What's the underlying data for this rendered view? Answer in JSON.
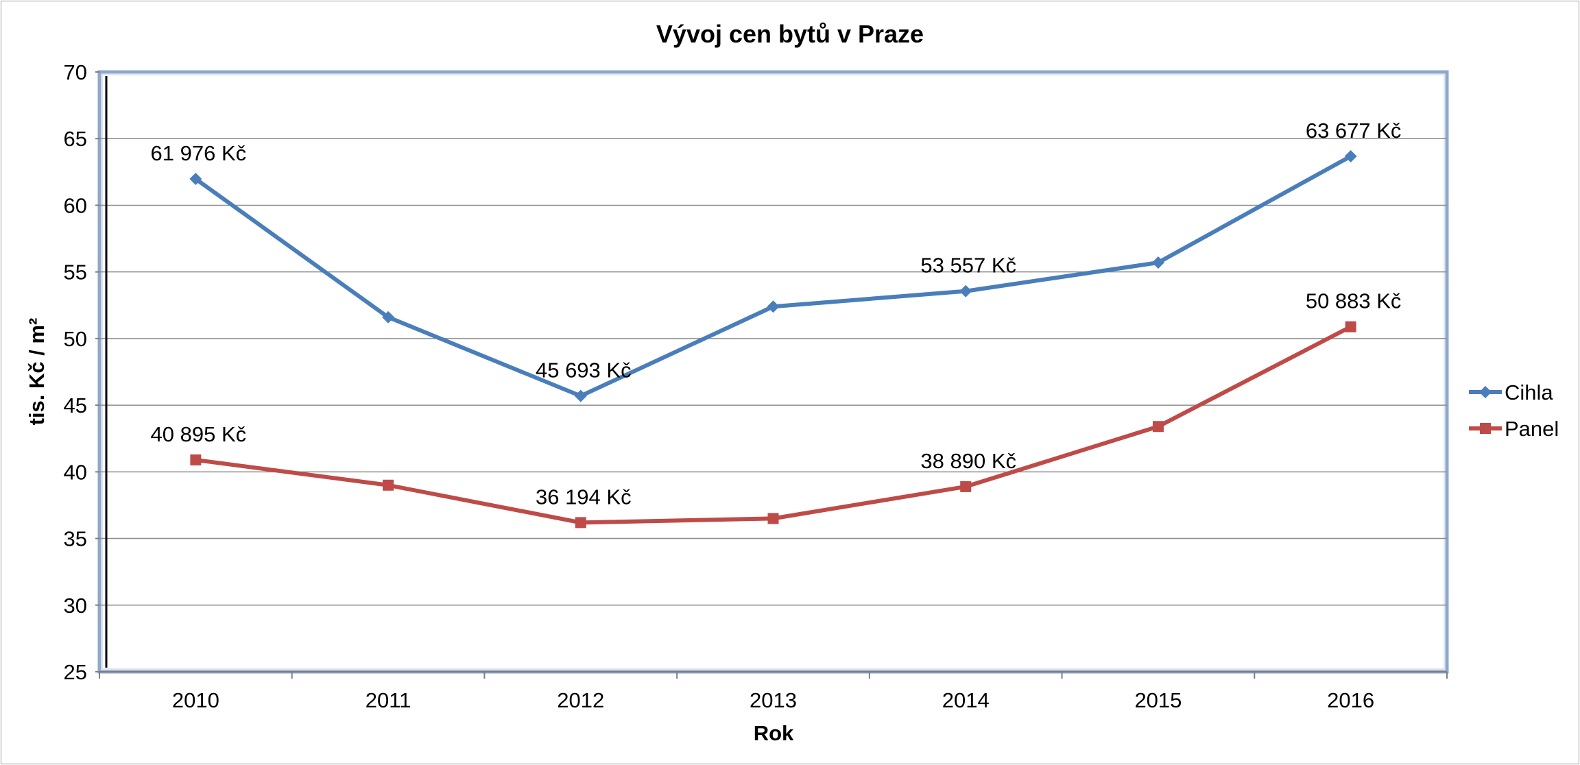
{
  "chart_data": {
    "type": "line",
    "title": "Vývoj cen bytů v Praze",
    "xlabel": "Rok",
    "ylabel": "tis. Kč / m²",
    "categories": [
      "2010",
      "2011",
      "2012",
      "2013",
      "2014",
      "2015",
      "2016"
    ],
    "ylim": [
      25,
      70
    ],
    "yticks": [
      25,
      30,
      35,
      40,
      45,
      50,
      55,
      60,
      65,
      70
    ],
    "grid": true,
    "legend_position": "right",
    "series": [
      {
        "name": "Cihla",
        "color": "#4a7ebb",
        "marker": "diamond",
        "values": [
          61.976,
          51.6,
          45.693,
          52.4,
          53.557,
          55.7,
          63.677
        ],
        "labels": [
          "61 976 Kč",
          "",
          "45 693 Kč",
          "",
          "53 557 Kč",
          "",
          "63 677 Kč"
        ]
      },
      {
        "name": "Panel",
        "color": "#be4b48",
        "marker": "square",
        "values": [
          40.895,
          39.0,
          36.194,
          36.5,
          38.89,
          43.4,
          50.883
        ],
        "labels": [
          "40 895 Kč",
          "",
          "36 194 Kč",
          "",
          "38 890 Kč",
          "",
          "50 883 Kč"
        ]
      }
    ]
  }
}
